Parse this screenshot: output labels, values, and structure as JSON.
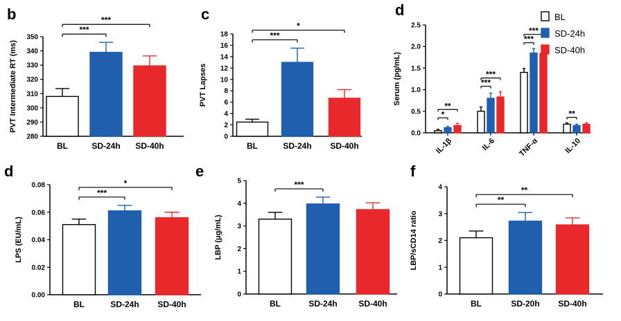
{
  "colors": {
    "bl": "#ffffff",
    "sd24": "#1f5fad",
    "sd40": "#e8282b",
    "axis": "#000000"
  },
  "legend": {
    "items": [
      "BL",
      "SD-24h",
      "SD-40h"
    ]
  },
  "chart_data": [
    {
      "id": "b",
      "panel_label": "b",
      "type": "bar",
      "categories": [
        "BL",
        "SD-24h",
        "SD-40h"
      ],
      "values": [
        308,
        339,
        329.5
      ],
      "errors": [
        5.5,
        7,
        7
      ],
      "ylabel": "PVT Intermediate RT (ms)",
      "ylim": [
        280,
        350
      ],
      "yticks": [
        "280",
        "290",
        "300",
        "310",
        "320",
        "330",
        "340",
        "350"
      ],
      "significance": [
        {
          "from": 0,
          "to": 1,
          "label": "***"
        },
        {
          "from": 0,
          "to": 2,
          "label": "***"
        }
      ]
    },
    {
      "id": "c",
      "panel_label": "c",
      "type": "bar",
      "categories": [
        "BL",
        "SD-24h",
        "SD-40h"
      ],
      "values": [
        2.5,
        13,
        6.7
      ],
      "errors": [
        0.5,
        2.5,
        1.5
      ],
      "ylabel": "PVT Lapses",
      "ylim": [
        0,
        18
      ],
      "yticks": [
        "0",
        "2",
        "4",
        "6",
        "8",
        "10",
        "12",
        "14",
        "16",
        "18"
      ],
      "significance": [
        {
          "from": 0,
          "to": 1,
          "label": "***"
        },
        {
          "from": 0,
          "to": 2,
          "label": "*"
        }
      ]
    },
    {
      "id": "d-top",
      "panel_label": "d",
      "type": "bar",
      "categories": [
        "IL-1β",
        "IL-6",
        "TNF-α",
        "IL-10"
      ],
      "series": [
        {
          "name": "BL",
          "values": [
            0.05,
            0.5,
            1.4,
            0.2
          ],
          "errors": [
            0.03,
            0.1,
            0.09,
            0.03
          ]
        },
        {
          "name": "SD-24h",
          "values": [
            0.12,
            0.8,
            1.85,
            0.17
          ],
          "errors": [
            0.03,
            0.12,
            0.1,
            0.03
          ]
        },
        {
          "name": "SD-40h",
          "values": [
            0.17,
            0.83,
            1.84,
            0.2
          ],
          "errors": [
            0.05,
            0.12,
            0.12,
            0.03
          ]
        }
      ],
      "ylabel": "Serum (pg/mL)",
      "ylim": [
        0,
        2.5
      ],
      "yticks": [
        "0.0",
        "0.5",
        "1.0",
        "1.5",
        "2.0",
        "2.5"
      ],
      "legend_position": "top-right",
      "significance": [
        {
          "group": 0,
          "from": 0,
          "to": 1,
          "label": "*"
        },
        {
          "group": 0,
          "from": 0,
          "to": 2,
          "label": "**"
        },
        {
          "group": 1,
          "from": 0,
          "to": 1,
          "label": "***"
        },
        {
          "group": 1,
          "from": 0,
          "to": 2,
          "label": "***"
        },
        {
          "group": 2,
          "from": 0,
          "to": 1,
          "label": "***"
        },
        {
          "group": 2,
          "from": 0,
          "to": 2,
          "label": "***"
        },
        {
          "group": 3,
          "from": 0,
          "to": 1,
          "label": "**"
        }
      ]
    },
    {
      "id": "d-bottom",
      "panel_label": "d",
      "type": "bar",
      "categories": [
        "BL",
        "SD-24h",
        "SD-40h"
      ],
      "values": [
        0.051,
        0.061,
        0.056
      ],
      "errors": [
        0.004,
        0.004,
        0.004
      ],
      "ylabel": "LPS (EU/mL)",
      "ylim": [
        0,
        0.08
      ],
      "yticks": [
        "0.00",
        "0.02",
        "0.04",
        "0.06",
        "0.08"
      ],
      "significance": [
        {
          "from": 0,
          "to": 1,
          "label": "***"
        },
        {
          "from": 0,
          "to": 2,
          "label": "*"
        }
      ]
    },
    {
      "id": "e",
      "panel_label": "e",
      "type": "bar",
      "categories": [
        "BL",
        "SD-24h",
        "SD-40h"
      ],
      "values": [
        3.3,
        3.97,
        3.72
      ],
      "errors": [
        0.3,
        0.3,
        0.3
      ],
      "ylabel": "LBP (μg/mL)",
      "ylim": [
        0,
        5
      ],
      "yticks": [
        "0",
        "1",
        "2",
        "3",
        "4",
        "5"
      ],
      "significance": [
        {
          "from": 0,
          "to": 1,
          "label": "***"
        }
      ]
    },
    {
      "id": "f",
      "panel_label": "f",
      "type": "bar",
      "categories": [
        "BL",
        "SD-20h",
        "SD-40h"
      ],
      "values": [
        2.1,
        2.72,
        2.58
      ],
      "errors": [
        0.25,
        0.32,
        0.26
      ],
      "ylabel": "LBP/sCD14 ratio",
      "ylim": [
        0,
        4
      ],
      "yticks": [
        "0",
        "1",
        "2",
        "3",
        "4"
      ],
      "significance": [
        {
          "from": 0,
          "to": 1,
          "label": "**"
        },
        {
          "from": 0,
          "to": 2,
          "label": "**"
        }
      ]
    }
  ]
}
